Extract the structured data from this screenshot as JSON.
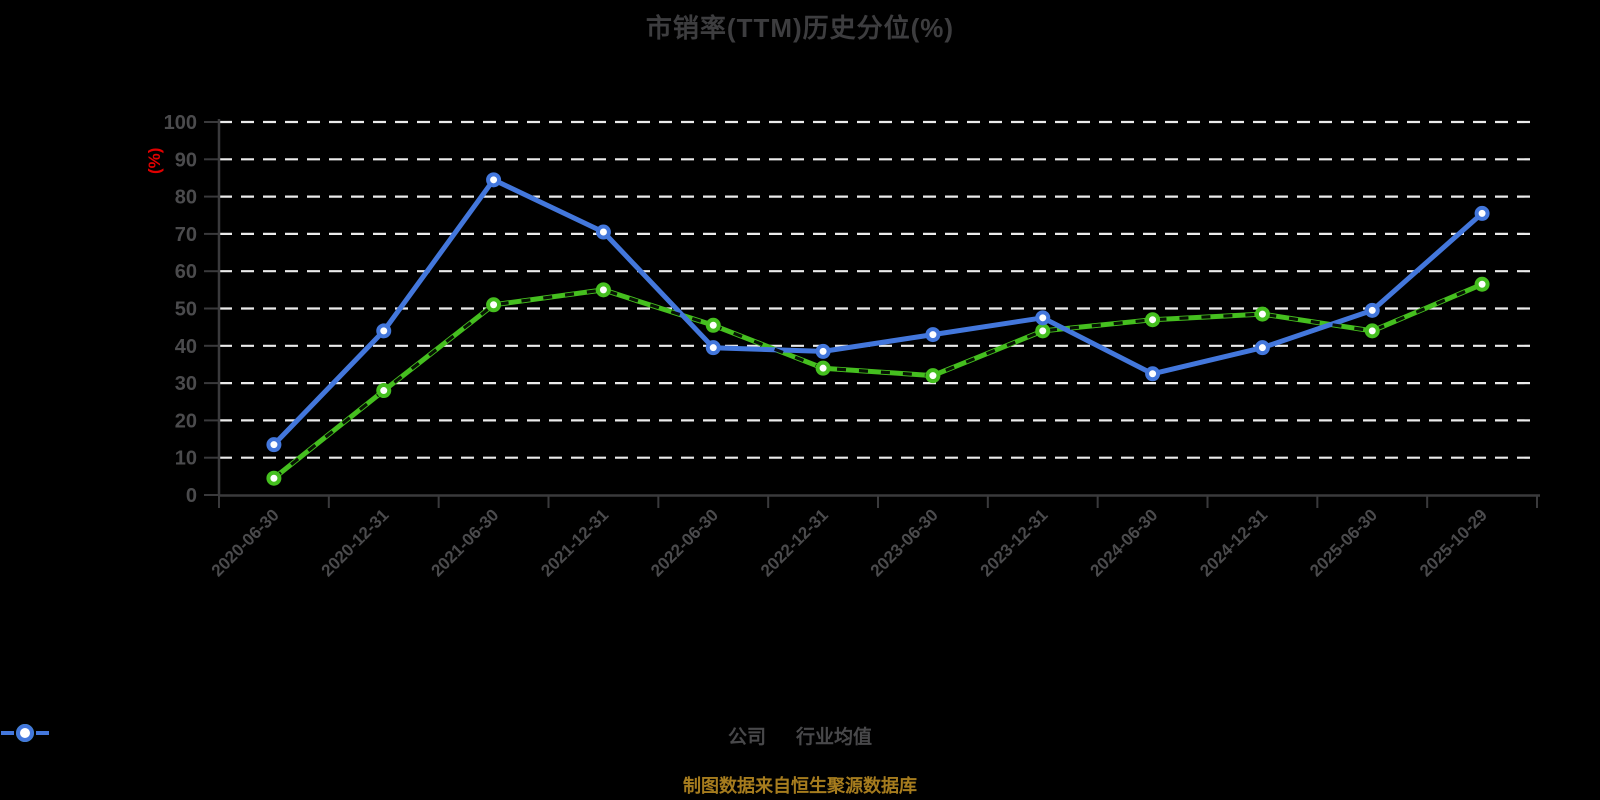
{
  "title": "市销率(TTM)历史分位(%)",
  "y_axis_label": "(%)",
  "footer": "制图数据来自恒生聚源数据库",
  "colors": {
    "company_green": "#45bf1f",
    "industry_blue": "#4377dc",
    "y_axis_label_red": "#e00000",
    "footer_gold": "#a67c1e",
    "grid_line": "#ebebeb",
    "axis_line": "#3a3a3c",
    "tick_label": "#4b4b4d",
    "marker_fill": "#ffffff",
    "background": "#000000"
  },
  "legend": [
    {
      "id": "company",
      "label": "公司",
      "color": "#45bf1f"
    },
    {
      "id": "industry-average",
      "label": "行业均值",
      "color": "#4377dc"
    }
  ],
  "chart_data": {
    "type": "line",
    "title": "市销率(TTM)历史分位(%)",
    "ylabel": "(%)",
    "ylim": [
      0,
      100
    ],
    "yticks": [
      0,
      10,
      20,
      30,
      40,
      50,
      60,
      70,
      80,
      90,
      100
    ],
    "grid": "horizontal-dashed",
    "legend_position": "bottom",
    "categories": [
      "2020-06-30",
      "2020-12-31",
      "2021-06-30",
      "2021-12-31",
      "2022-06-30",
      "2022-12-31",
      "2023-06-30",
      "2023-12-31",
      "2024-06-30",
      "2024-12-31",
      "2025-06-30",
      "2025-10-29"
    ],
    "series": [
      {
        "name": "公司",
        "color": "#45bf1f",
        "values": [
          4.5,
          28,
          51,
          55,
          45.5,
          34,
          32,
          44,
          47,
          48.5,
          44,
          56.5
        ]
      },
      {
        "name": "行业均值",
        "color": "#4377dc",
        "values": [
          13.5,
          44,
          84.5,
          70.5,
          39.5,
          38.5,
          43,
          47.5,
          32.5,
          39.5,
          49.5,
          75.5
        ]
      }
    ]
  }
}
